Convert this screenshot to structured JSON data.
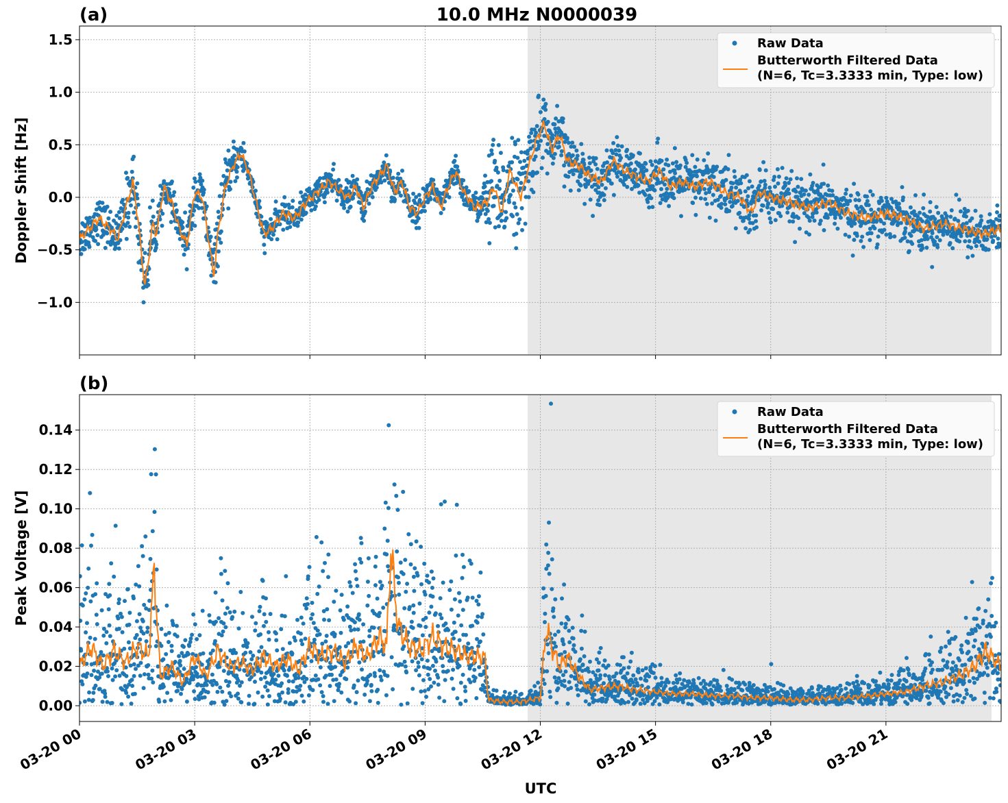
{
  "chart_data": [
    {
      "type": "scatter",
      "panel_label": "(a)",
      "title": "10.0 MHz N0000039",
      "xlabel": "",
      "ylabel": "Doppler Shift [Hz]",
      "x_unit": "hours since 03-20 00 UTC",
      "xlim": [
        0,
        24
      ],
      "ylim": [
        -1.5,
        1.63
      ],
      "yticks": [
        -1.0,
        -0.5,
        0.0,
        0.5,
        1.0,
        1.5
      ],
      "ytick_labels": [
        "−1.0",
        "−0.5",
        "0.0",
        "0.5",
        "1.0",
        "1.5"
      ],
      "grid": true,
      "shaded_region": {
        "x": [
          11.67,
          23.75
        ],
        "color": "#e7e7e7"
      },
      "legend": {
        "placement": "top-right",
        "entries": [
          "Raw Data",
          "Butterworth Filtered Data",
          "(N=6, Tc=3.3333 min, Type: low)"
        ]
      },
      "series": [
        {
          "name": "Raw Data",
          "kind": "scatter",
          "color": "#1f77b4",
          "spread": 0.12,
          "spread_by_hour": {
            "0.0": 0.18,
            "1.0": 0.18,
            "1.3": 0.3,
            "1.8": 0.25,
            "2.2": 0.12,
            "3.5": 0.25,
            "4.5": 0.12,
            "10.5": 0.12,
            "10.6": 0.45,
            "11.6": 0.4,
            "12.0": 0.3,
            "13.0": 0.2,
            "14.0": 0.2,
            "17.5": 0.28,
            "18.5": 0.22,
            "24.0": 0.2
          }
        },
        {
          "name": "Butterworth Filtered Data",
          "kind": "line",
          "color": "#ff7f0e",
          "x": [
            0.0,
            0.5,
            0.8,
            1.0,
            1.2,
            1.4,
            1.55,
            1.7,
            1.8,
            1.9,
            2.0,
            2.2,
            2.4,
            2.6,
            2.8,
            3.0,
            3.2,
            3.4,
            3.5,
            3.6,
            3.8,
            4.0,
            4.2,
            4.4,
            4.6,
            4.8,
            5.0,
            5.3,
            5.6,
            5.9,
            6.2,
            6.5,
            6.8,
            7.0,
            7.2,
            7.4,
            7.6,
            7.8,
            8.0,
            8.2,
            8.4,
            8.6,
            8.8,
            9.0,
            9.2,
            9.4,
            9.6,
            9.8,
            10.0,
            10.3,
            10.6,
            10.8,
            11.0,
            11.2,
            11.5,
            11.7,
            11.9,
            12.1,
            12.3,
            12.5,
            12.7,
            13.0,
            13.3,
            13.6,
            13.9,
            14.2,
            14.5,
            14.8,
            15.1,
            15.4,
            15.7,
            16.0,
            16.4,
            16.8,
            17.2,
            17.5,
            17.7,
            18.0,
            18.5,
            19.0,
            19.5,
            20.0,
            20.5,
            21.0,
            21.5,
            22.0,
            22.5,
            23.0,
            23.5,
            24.0
          ],
          "y": [
            -0.4,
            -0.2,
            -0.3,
            -0.4,
            -0.1,
            0.15,
            -0.3,
            -0.85,
            -0.6,
            -0.25,
            -0.35,
            0.1,
            -0.05,
            -0.3,
            -0.45,
            0.05,
            0.0,
            -0.5,
            -0.75,
            -0.35,
            0.1,
            0.3,
            0.42,
            0.25,
            -0.05,
            -0.35,
            -0.3,
            -0.15,
            -0.2,
            -0.05,
            0.05,
            0.15,
            0.05,
            0.0,
            0.1,
            -0.1,
            0.1,
            0.2,
            0.3,
            0.05,
            0.15,
            -0.1,
            -0.15,
            0.0,
            0.1,
            -0.1,
            0.1,
            0.25,
            0.05,
            -0.1,
            -0.05,
            0.1,
            -0.15,
            0.25,
            0.0,
            0.3,
            0.55,
            0.7,
            0.45,
            0.6,
            0.35,
            0.3,
            0.2,
            0.15,
            0.35,
            0.25,
            0.2,
            0.15,
            0.25,
            0.1,
            0.15,
            0.1,
            0.15,
            0.05,
            0.0,
            -0.15,
            0.05,
            0.0,
            -0.05,
            -0.1,
            -0.05,
            -0.15,
            -0.2,
            -0.15,
            -0.2,
            -0.3,
            -0.25,
            -0.3,
            -0.35,
            -0.3
          ]
        }
      ]
    },
    {
      "type": "scatter",
      "panel_label": "(b)",
      "title": "",
      "xlabel": "UTC",
      "ylabel": "Peak Voltage [V]",
      "x_unit": "hours since 03-20 00 UTC",
      "xlim": [
        0,
        24
      ],
      "ylim": [
        -0.008,
        0.158
      ],
      "yticks": [
        0.0,
        0.02,
        0.04,
        0.06,
        0.08,
        0.1,
        0.12,
        0.14
      ],
      "ytick_labels": [
        "0.00",
        "0.02",
        "0.04",
        "0.06",
        "0.08",
        "0.10",
        "0.12",
        "0.14"
      ],
      "xticks": [
        0,
        3,
        6,
        9,
        12,
        15,
        18,
        21
      ],
      "xtick_labels": [
        "03-20 00",
        "03-20 03",
        "03-20 06",
        "03-20 09",
        "03-20 12",
        "03-20 15",
        "03-20 18",
        "03-20 21"
      ],
      "grid": true,
      "shaded_region": {
        "x": [
          11.67,
          23.75
        ],
        "color": "#e7e7e7"
      },
      "legend": {
        "placement": "top-right",
        "entries": [
          "Raw Data",
          "Butterworth Filtered Data",
          "(N=6, Tc=3.3333 min, Type: low)"
        ]
      },
      "series": [
        {
          "name": "Raw Data",
          "kind": "scatter",
          "color": "#1f77b4",
          "spread_ratio": 0.9
        },
        {
          "name": "Butterworth Filtered Data",
          "kind": "line",
          "color": "#ff7f0e",
          "x": [
            0.0,
            0.3,
            0.6,
            0.9,
            1.2,
            1.5,
            1.8,
            1.95,
            2.1,
            2.4,
            2.7,
            3.0,
            3.3,
            3.6,
            3.9,
            4.2,
            4.5,
            4.8,
            5.1,
            5.4,
            5.7,
            6.0,
            6.3,
            6.6,
            6.9,
            7.2,
            7.5,
            7.8,
            8.0,
            8.1,
            8.3,
            8.6,
            8.9,
            9.2,
            9.5,
            9.8,
            10.1,
            10.4,
            10.55,
            10.65,
            11.0,
            11.5,
            12.0,
            12.15,
            12.3,
            12.5,
            12.7,
            13.0,
            13.3,
            13.6,
            14.0,
            14.5,
            15.0,
            15.5,
            16.0,
            16.5,
            17.0,
            17.5,
            18.0,
            18.5,
            19.0,
            19.5,
            20.0,
            20.5,
            21.0,
            21.5,
            22.0,
            22.5,
            23.0,
            23.3,
            23.6,
            24.0
          ],
          "y": [
            0.02,
            0.03,
            0.02,
            0.028,
            0.022,
            0.03,
            0.025,
            0.07,
            0.015,
            0.02,
            0.012,
            0.025,
            0.015,
            0.028,
            0.02,
            0.022,
            0.018,
            0.025,
            0.02,
            0.024,
            0.018,
            0.03,
            0.025,
            0.028,
            0.022,
            0.03,
            0.025,
            0.035,
            0.03,
            0.08,
            0.04,
            0.03,
            0.028,
            0.035,
            0.03,
            0.028,
            0.025,
            0.025,
            0.025,
            0.003,
            0.002,
            0.002,
            0.004,
            0.04,
            0.03,
            0.02,
            0.025,
            0.015,
            0.008,
            0.009,
            0.01,
            0.008,
            0.007,
            0.006,
            0.006,
            0.005,
            0.005,
            0.004,
            0.004,
            0.003,
            0.003,
            0.004,
            0.004,
            0.005,
            0.006,
            0.007,
            0.01,
            0.012,
            0.016,
            0.02,
            0.028,
            0.02
          ]
        }
      ]
    }
  ]
}
